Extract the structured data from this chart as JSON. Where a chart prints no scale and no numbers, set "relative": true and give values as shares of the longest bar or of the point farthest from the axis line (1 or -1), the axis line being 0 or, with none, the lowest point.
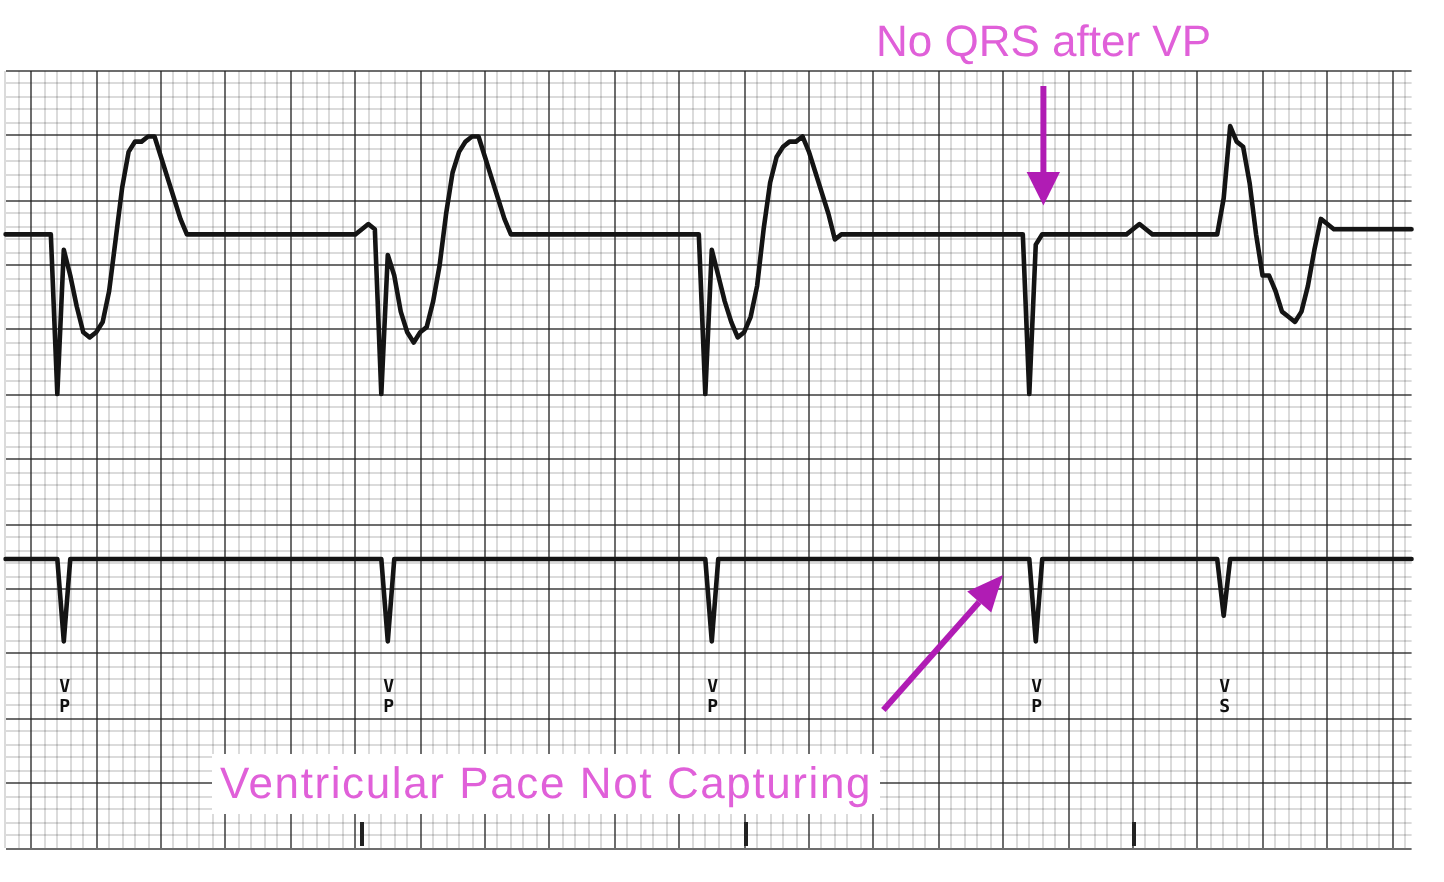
{
  "chart_data": {
    "type": "line",
    "relative": true,
    "grid": true,
    "marker": "none",
    "categories": [
      null,
      null,
      null,
      null,
      null,
      null,
      null,
      null,
      null,
      null,
      null,
      null,
      null,
      null,
      null,
      null,
      null,
      null,
      null,
      null,
      null,
      null,
      null,
      null,
      null,
      null,
      null,
      null,
      null,
      null,
      null,
      null,
      null,
      null,
      null,
      null,
      null,
      null,
      null,
      null,
      null,
      null,
      null,
      null,
      null,
      null,
      null,
      null,
      null,
      null,
      null,
      null,
      null,
      null,
      null,
      null,
      null,
      null,
      null,
      null,
      null,
      null,
      null,
      null,
      null,
      null,
      null,
      null,
      null,
      null,
      null,
      null,
      null,
      null,
      null,
      null,
      null,
      null,
      null,
      null,
      null,
      null,
      null,
      null,
      null,
      null,
      null,
      null,
      null,
      null,
      null,
      null,
      null,
      null,
      null,
      null,
      null,
      null,
      null,
      null,
      null,
      null,
      null,
      null,
      null,
      null,
      null,
      null,
      null,
      null,
      null,
      null,
      null,
      null,
      null,
      null,
      null,
      null,
      null,
      null,
      null,
      null,
      null,
      null,
      null,
      null,
      null,
      null,
      null,
      null,
      null,
      null,
      null,
      null,
      null,
      null,
      null,
      null,
      null,
      null,
      null,
      null,
      null,
      null,
      null,
      null,
      null,
      null,
      null,
      null,
      null,
      null,
      null,
      null,
      null,
      null,
      null,
      null,
      null,
      null,
      null,
      null,
      null,
      null,
      null,
      null,
      null,
      null,
      null,
      null,
      null,
      null,
      null,
      null,
      null,
      null,
      null,
      null,
      null,
      null,
      null,
      null,
      null,
      null,
      null,
      null,
      null,
      null,
      null,
      null,
      null,
      null,
      null,
      null,
      null,
      null,
      null,
      null,
      null,
      null,
      null,
      null,
      null,
      null,
      null,
      null,
      null,
      null,
      null,
      null,
      null,
      null,
      null,
      null,
      null,
      null,
      null,
      null
    ],
    "series": [
      {
        "color": "#141414",
        "values": [
          0.79,
          0.79,
          0.79,
          0.79,
          0.79,
          0.79,
          0.79,
          0.79,
          0.48,
          0.76,
          0.71,
          0.65,
          0.6,
          0.59,
          0.6,
          0.62,
          0.68,
          0.78,
          0.88,
          0.95,
          0.97,
          0.97,
          0.98,
          0.98,
          0.94,
          0.9,
          0.86,
          0.82,
          0.79,
          0.79,
          0.79,
          0.79,
          0.79,
          0.79,
          0.79,
          0.79,
          0.79,
          0.79,
          0.79,
          0.79,
          0.79,
          0.79,
          0.79,
          0.79,
          0.79,
          0.79,
          0.79,
          0.79,
          0.79,
          0.79,
          0.79,
          0.79,
          0.79,
          0.79,
          0.79,
          0.8,
          0.81,
          0.8,
          0.48,
          0.75,
          0.71,
          0.64,
          0.6,
          0.58,
          0.6,
          0.61,
          0.66,
          0.73,
          0.83,
          0.91,
          0.95,
          0.97,
          0.98,
          0.98,
          0.94,
          0.9,
          0.86,
          0.82,
          0.79,
          0.79,
          0.79,
          0.79,
          0.79,
          0.79,
          0.79,
          0.79,
          0.79,
          0.79,
          0.79,
          0.79,
          0.79,
          0.79,
          0.79,
          0.79,
          0.79,
          0.79,
          0.79,
          0.79,
          0.79,
          0.79,
          0.79,
          0.79,
          0.79,
          0.79,
          0.79,
          0.79,
          0.79,
          0.79,
          0.48,
          0.76,
          0.71,
          0.66,
          0.62,
          0.59,
          0.6,
          0.63,
          0.69,
          0.8,
          0.89,
          0.94,
          0.96,
          0.97,
          0.97,
          0.98,
          0.95,
          0.91,
          0.87,
          0.83,
          0.78,
          0.79,
          0.79,
          0.79,
          0.79,
          0.79,
          0.79,
          0.79,
          0.79,
          0.79,
          0.79,
          0.79,
          0.79,
          0.79,
          0.79,
          0.79,
          0.79,
          0.79,
          0.79,
          0.79,
          0.79,
          0.79,
          0.79,
          0.79,
          0.79,
          0.79,
          0.79,
          0.79,
          0.79,
          0.79,
          0.48,
          0.77,
          0.79,
          0.79,
          0.79,
          0.79,
          0.79,
          0.79,
          0.79,
          0.79,
          0.79,
          0.79,
          0.79,
          0.79,
          0.79,
          0.79,
          0.8,
          0.81,
          0.8,
          0.79,
          0.79,
          0.79,
          0.79,
          0.79,
          0.79,
          0.79,
          0.79,
          0.79,
          0.79,
          0.79,
          0.86,
          1,
          0.97,
          0.96,
          0.89,
          0.79,
          0.71,
          0.71,
          0.68,
          0.64,
          0.63,
          0.62,
          0.64,
          0.69,
          0.76,
          0.82,
          0.81,
          0.8,
          0.8,
          0.8,
          0.8,
          0.8,
          0.8,
          0.8,
          0.8,
          0.8,
          0.8,
          0.8,
          0.8,
          0.8
        ]
      },
      {
        "color": "#141414",
        "values": [
          0.16,
          0.16,
          0.16,
          0.16,
          0.16,
          0.16,
          0.16,
          0.16,
          0.16,
          0,
          0.16,
          0.16,
          0.16,
          0.16,
          0.16,
          0.16,
          0.16,
          0.16,
          0.16,
          0.16,
          0.16,
          0.16,
          0.16,
          0.16,
          0.16,
          0.16,
          0.16,
          0.16,
          0.16,
          0.16,
          0.16,
          0.16,
          0.16,
          0.16,
          0.16,
          0.16,
          0.16,
          0.16,
          0.16,
          0.16,
          0.16,
          0.16,
          0.16,
          0.16,
          0.16,
          0.16,
          0.16,
          0.16,
          0.16,
          0.16,
          0.16,
          0.16,
          0.16,
          0.16,
          0.16,
          0.16,
          0.16,
          0.16,
          0.16,
          0,
          0.16,
          0.16,
          0.16,
          0.16,
          0.16,
          0.16,
          0.16,
          0.16,
          0.16,
          0.16,
          0.16,
          0.16,
          0.16,
          0.16,
          0.16,
          0.16,
          0.16,
          0.16,
          0.16,
          0.16,
          0.16,
          0.16,
          0.16,
          0.16,
          0.16,
          0.16,
          0.16,
          0.16,
          0.16,
          0.16,
          0.16,
          0.16,
          0.16,
          0.16,
          0.16,
          0.16,
          0.16,
          0.16,
          0.16,
          0.16,
          0.16,
          0.16,
          0.16,
          0.16,
          0.16,
          0.16,
          0.16,
          0.16,
          0.16,
          0,
          0.16,
          0.16,
          0.16,
          0.16,
          0.16,
          0.16,
          0.16,
          0.16,
          0.16,
          0.16,
          0.16,
          0.16,
          0.16,
          0.16,
          0.16,
          0.16,
          0.16,
          0.16,
          0.16,
          0.16,
          0.16,
          0.16,
          0.16,
          0.16,
          0.16,
          0.16,
          0.16,
          0.16,
          0.16,
          0.16,
          0.16,
          0.16,
          0.16,
          0.16,
          0.16,
          0.16,
          0.16,
          0.16,
          0.16,
          0.16,
          0.16,
          0.16,
          0.16,
          0.16,
          0.16,
          0.16,
          0.16,
          0.16,
          0.16,
          0,
          0.16,
          0.16,
          0.16,
          0.16,
          0.16,
          0.16,
          0.16,
          0.16,
          0.16,
          0.16,
          0.16,
          0.16,
          0.16,
          0.16,
          0.16,
          0.16,
          0.16,
          0.16,
          0.16,
          0.16,
          0.16,
          0.16,
          0.16,
          0.16,
          0.16,
          0.16,
          0.16,
          0.16,
          0.05,
          0.16,
          0.16,
          0.16,
          0.16,
          0.16,
          0.16,
          0.16,
          0.16,
          0.16,
          0.16,
          0.16,
          0.16,
          0.16,
          0.16,
          0.16,
          0.16,
          0.16,
          0.16,
          0.16,
          0.16,
          0.16,
          0.16,
          0.16,
          0.16,
          0.16,
          0.16,
          0.16,
          0.16,
          0.16
        ]
      }
    ],
    "annotations": [
      "No QRS after VP",
      "Ventricular Pace Not Capturing",
      "VP",
      "VP",
      "VP",
      "VP",
      "VS"
    ]
  }
}
